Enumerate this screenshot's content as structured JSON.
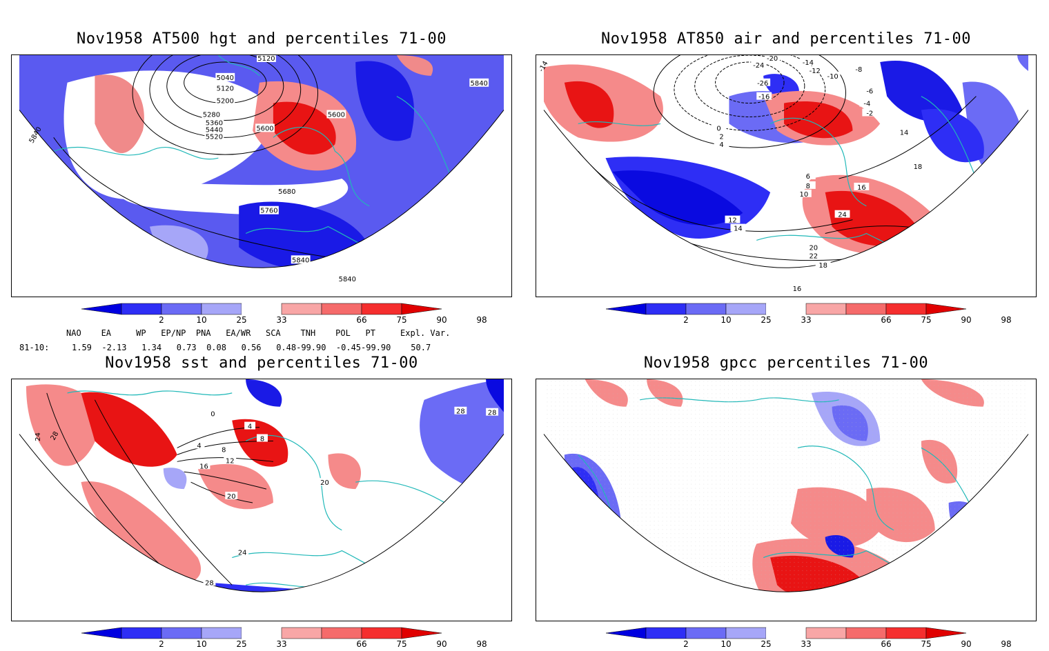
{
  "panels": [
    {
      "title": "Nov1958 AT500 hgt and percentiles 71-00",
      "contour_labels": [
        "5040",
        "5120",
        "5120",
        "5200",
        "5280",
        "5360",
        "5440",
        "5520",
        "5600",
        "5600",
        "5680",
        "5760",
        "5840",
        "5840",
        "5840",
        "5840"
      ]
    },
    {
      "title": "Nov1958 AT850 air and percentiles 71-00",
      "contour_labels": [
        "-20",
        "-24",
        "-26",
        "-16",
        "-14",
        "-12",
        "-10",
        "-8",
        "-6",
        "-4",
        "-2",
        "0",
        "2",
        "4",
        "6",
        "8",
        "10",
        "12",
        "14",
        "16",
        "18",
        "20",
        "22",
        "24",
        "14",
        "16",
        "18",
        "-14"
      ]
    },
    {
      "title": "Nov1958 sst and percentiles 71-00",
      "contour_labels": [
        "24",
        "28",
        "4",
        "8",
        "12",
        "16",
        "20",
        "24",
        "28",
        "0",
        "4",
        "8",
        "20",
        "28",
        "28"
      ]
    },
    {
      "title": "Nov1958 gpcc percentiles 71-00",
      "contour_labels": []
    }
  ],
  "colorbar": {
    "ticks": [
      "2",
      "10",
      "25",
      "33",
      "66",
      "75",
      "90",
      "98"
    ],
    "colors": [
      "#0000e0",
      "#2e2ef5",
      "#6b6bf5",
      "#a6a6f8",
      "#ffffff",
      "#f8a6a6",
      "#f56b6b",
      "#f52e2e",
      "#e00000"
    ]
  },
  "indices": {
    "header": "NAO    EA     WP   EP/NP  PNA   EA/WR   SCA    TNH    POL   PT     Expl. Var.",
    "row_label": "81-10:",
    "row_values": "1.59  -2.13   1.34   0.73  0.08   0.56   0.48-99.90  -0.45-99.90    50.7"
  }
}
